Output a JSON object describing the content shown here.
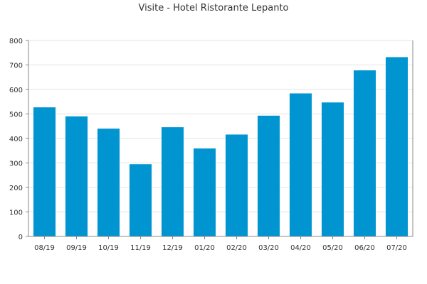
{
  "chart_data": {
    "type": "bar",
    "title": "Visite - Hotel Ristorante Lepanto",
    "xlabel": "",
    "ylabel": "",
    "categories": [
      "08/19",
      "09/19",
      "10/19",
      "11/19",
      "12/19",
      "01/20",
      "02/20",
      "03/20",
      "04/20",
      "05/20",
      "06/20",
      "07/20"
    ],
    "series": [
      {
        "values": [
          527,
          490,
          440,
          295,
          446,
          359,
          416,
          493,
          584,
          547,
          678,
          732
        ],
        "color": "#0095d1"
      }
    ],
    "ylim": [
      0,
      800
    ],
    "yticks": [
      "0",
      "100",
      "200",
      "300",
      "400",
      "500",
      "600",
      "700",
      "800"
    ],
    "grid": true,
    "legend": "none"
  }
}
